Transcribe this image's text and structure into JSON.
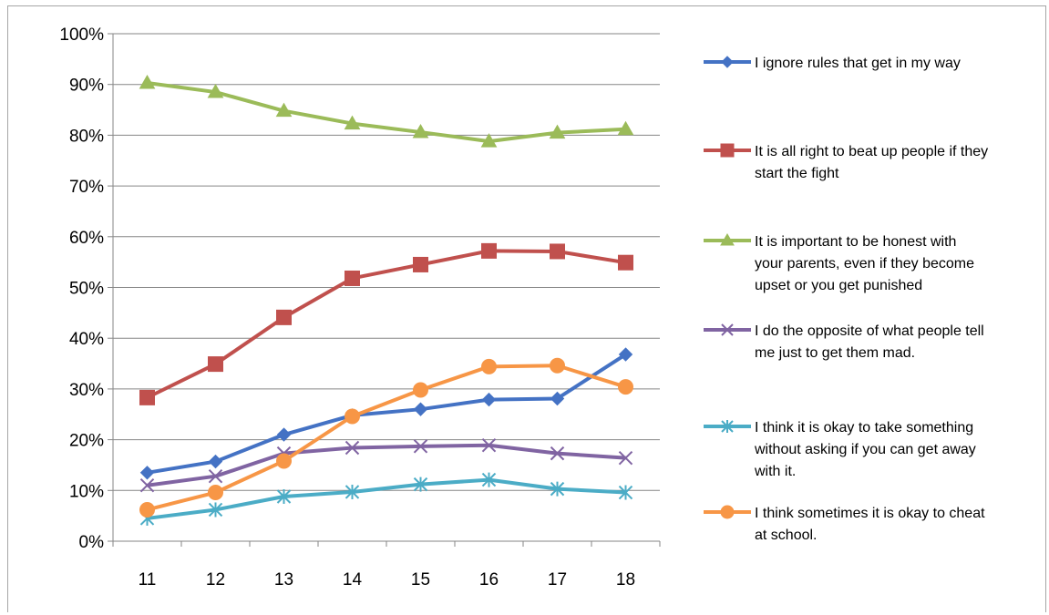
{
  "chart_data": {
    "type": "line",
    "title": "",
    "xlabel": "",
    "ylabel": "",
    "x": [
      "11",
      "12",
      "13",
      "14",
      "15",
      "16",
      "17",
      "18"
    ],
    "ylim": [
      0,
      1
    ],
    "y_ticks": [
      "0%",
      "10%",
      "20%",
      "30%",
      "40%",
      "50%",
      "60%",
      "70%",
      "80%",
      "90%",
      "100%"
    ],
    "grid": true,
    "legend_position": "right",
    "series": [
      {
        "name": "I ignore rules that get in my way",
        "legend_lines": [
          "I ignore rules that get in my way"
        ],
        "color": "#4472C4",
        "marker": "diamond",
        "values": [
          0.135,
          0.157,
          0.21,
          0.248,
          0.26,
          0.279,
          0.281,
          0.368
        ]
      },
      {
        "name": "It is all right to beat up people if they start the fight",
        "legend_lines": [
          "It is all right to beat up people if they",
          "start the fight"
        ],
        "color": "#C0504D",
        "marker": "square",
        "values": [
          0.283,
          0.349,
          0.441,
          0.518,
          0.545,
          0.572,
          0.571,
          0.549
        ]
      },
      {
        "name": "It is important to be honest with your parents, even if they become upset or you get punished",
        "legend_lines": [
          "It is important to be honest with",
          "your parents, even if they become",
          "upset or you get punished"
        ],
        "color": "#9BBB59",
        "marker": "triangle",
        "values": [
          0.903,
          0.885,
          0.848,
          0.823,
          0.806,
          0.788,
          0.805,
          0.812
        ]
      },
      {
        "name": "I do the opposite of what people tell me just to get them mad.",
        "legend_lines": [
          "I do the opposite of what people tell",
          "me just to get them mad."
        ],
        "color": "#8064A2",
        "marker": "x",
        "values": [
          0.11,
          0.128,
          0.173,
          0.184,
          0.187,
          0.189,
          0.173,
          0.164
        ]
      },
      {
        "name": "I think it is okay to take something without asking if you can get away with it.",
        "legend_lines": [
          "I think it is okay to take something",
          "without asking if you can get away",
          "with it."
        ],
        "color": "#4BACC6",
        "marker": "asterisk",
        "values": [
          0.045,
          0.062,
          0.088,
          0.097,
          0.112,
          0.121,
          0.103,
          0.096
        ]
      },
      {
        "name": "I think sometimes it is okay to cheat at school.",
        "legend_lines": [
          "I think sometimes it is okay to cheat",
          "at school."
        ],
        "color": "#F79646",
        "marker": "circle",
        "values": [
          0.062,
          0.096,
          0.158,
          0.246,
          0.298,
          0.344,
          0.346,
          0.304
        ]
      }
    ]
  }
}
